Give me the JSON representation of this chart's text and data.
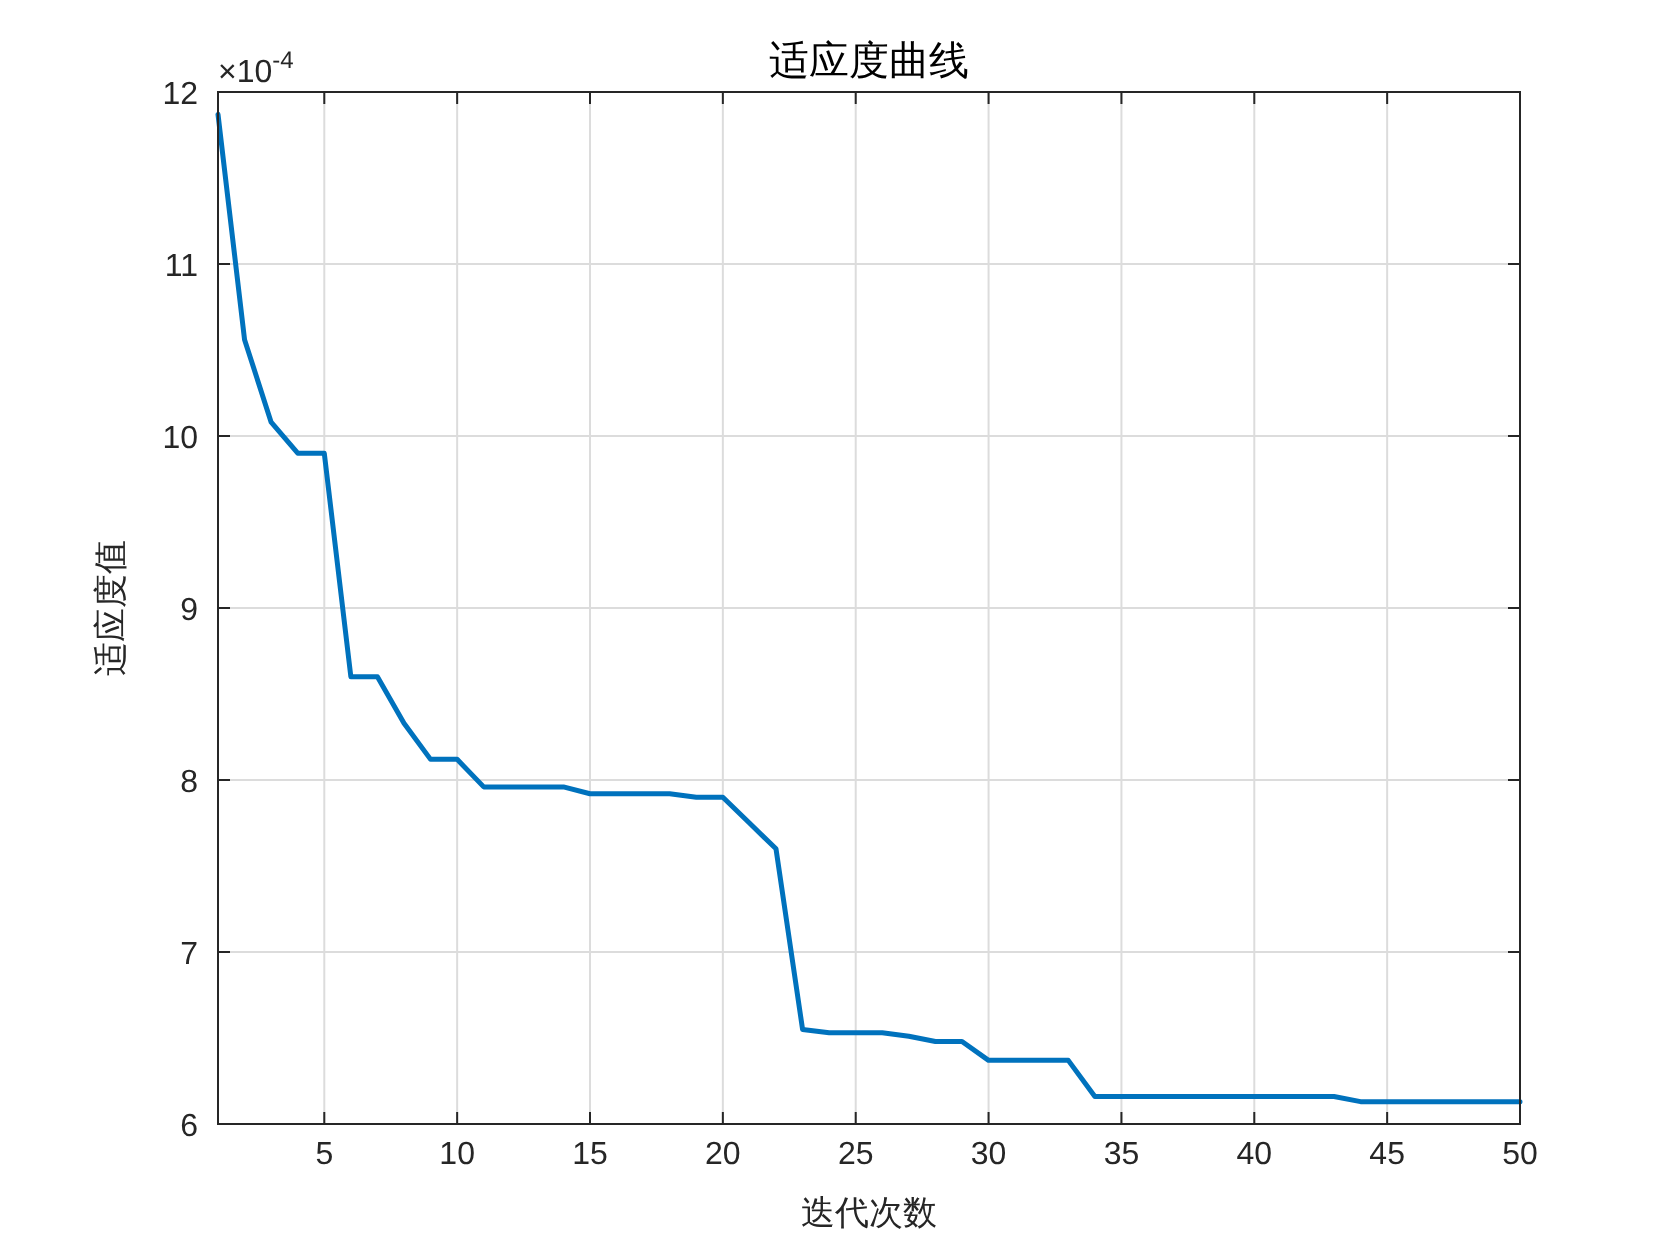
{
  "chart_data": {
    "type": "line",
    "title": "适应度曲线",
    "xlabel": "迭代次数",
    "ylabel": "适应度值",
    "annotations": [
      "×10$^{-4}$"
    ],
    "x": [
      1,
      2,
      3,
      4,
      5,
      6,
      7,
      8,
      9,
      10,
      11,
      12,
      13,
      14,
      15,
      16,
      17,
      18,
      19,
      20,
      21,
      22,
      23,
      24,
      25,
      26,
      27,
      28,
      29,
      30,
      31,
      32,
      33,
      34,
      35,
      36,
      37,
      38,
      39,
      40,
      41,
      42,
      43,
      44,
      45,
      46,
      47,
      48,
      49,
      50
    ],
    "series": [
      {
        "color": "#0072bd",
        "values": [
          11.87,
          10.56,
          10.08,
          9.9,
          9.9,
          8.6,
          8.6,
          8.33,
          8.12,
          8.12,
          7.96,
          7.96,
          7.96,
          7.96,
          7.92,
          7.92,
          7.92,
          7.92,
          7.9,
          7.9,
          7.75,
          7.6,
          6.55,
          6.53,
          6.53,
          6.53,
          6.51,
          6.48,
          6.48,
          6.37,
          6.37,
          6.37,
          6.37,
          6.16,
          6.16,
          6.16,
          6.16,
          6.16,
          6.16,
          6.16,
          6.16,
          6.16,
          6.16,
          6.13,
          6.13,
          6.13,
          6.13,
          6.13,
          6.13,
          6.13
        ]
      }
    ],
    "xlim": [
      1,
      50
    ],
    "xticks": [
      5,
      10,
      15,
      20,
      25,
      30,
      35,
      40,
      45,
      50
    ],
    "ylim": [
      6,
      12
    ],
    "yticks": [
      6,
      7,
      8,
      9,
      10,
      11,
      12
    ],
    "grid": true,
    "marker": "none",
    "line_style": "solid"
  }
}
